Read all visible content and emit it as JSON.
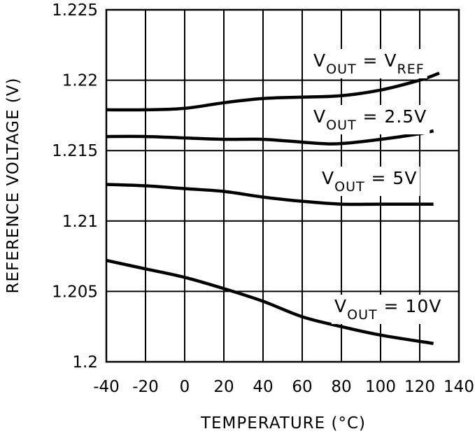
{
  "chart_data": {
    "type": "line",
    "title": "",
    "xlabel": "TEMPERATURE (°C)",
    "ylabel": "REFERENCE VOLTAGE (V)",
    "xlim": [
      -40,
      140
    ],
    "ylim": [
      1.2,
      1.225
    ],
    "grid": true,
    "x_ticks": [
      -40,
      -20,
      0,
      20,
      40,
      60,
      80,
      100,
      120,
      140
    ],
    "y_ticks": [
      1.2,
      1.205,
      1.21,
      1.215,
      1.22,
      1.225
    ],
    "x_tick_labels": [
      "-40",
      "-20",
      "0",
      "20",
      "40",
      "60",
      "80",
      "100",
      "120",
      "140"
    ],
    "y_tick_labels": [
      "1.2",
      "1.205",
      "1.21",
      "1.215",
      "1.22",
      "1.225"
    ],
    "series": [
      {
        "name": "VOUT = VREF",
        "label_main": "V",
        "label_sub": "OUT",
        "label_mid": " = V",
        "label_sub2": "REF",
        "label_end": "",
        "x": [
          -40,
          -20,
          0,
          20,
          40,
          60,
          80,
          100,
          120,
          130
        ],
        "y": [
          1.2179,
          1.2179,
          1.218,
          1.2184,
          1.2187,
          1.2188,
          1.2189,
          1.2193,
          1.22,
          1.2205
        ]
      },
      {
        "name": "VOUT = 2.5V",
        "label_main": "V",
        "label_sub": "OUT",
        "label_mid": " = 2.5V",
        "label_sub2": "",
        "label_end": "",
        "x": [
          -40,
          -20,
          0,
          20,
          40,
          60,
          70,
          80,
          100,
          120,
          127
        ],
        "y": [
          1.216,
          1.216,
          1.2159,
          1.2158,
          1.2158,
          1.2156,
          1.2155,
          1.2155,
          1.2158,
          1.2162,
          1.2164
        ]
      },
      {
        "name": "VOUT = 5V",
        "label_main": "V",
        "label_sub": "OUT",
        "label_mid": " = 5V",
        "label_sub2": "",
        "label_end": "",
        "x": [
          -40,
          -20,
          0,
          20,
          40,
          60,
          80,
          100,
          127
        ],
        "y": [
          1.2126,
          1.2125,
          1.2123,
          1.2121,
          1.2117,
          1.2114,
          1.2112,
          1.2112,
          1.2112
        ]
      },
      {
        "name": "VOUT = 10V",
        "label_main": "V",
        "label_sub": "OUT",
        "label_mid": " = 10V",
        "label_sub2": "",
        "label_end": "",
        "x": [
          -40,
          -20,
          0,
          20,
          40,
          60,
          80,
          100,
          127
        ],
        "y": [
          1.2072,
          1.2066,
          1.206,
          1.2052,
          1.2043,
          1.2032,
          1.2025,
          1.2019,
          1.2013
        ]
      }
    ]
  }
}
